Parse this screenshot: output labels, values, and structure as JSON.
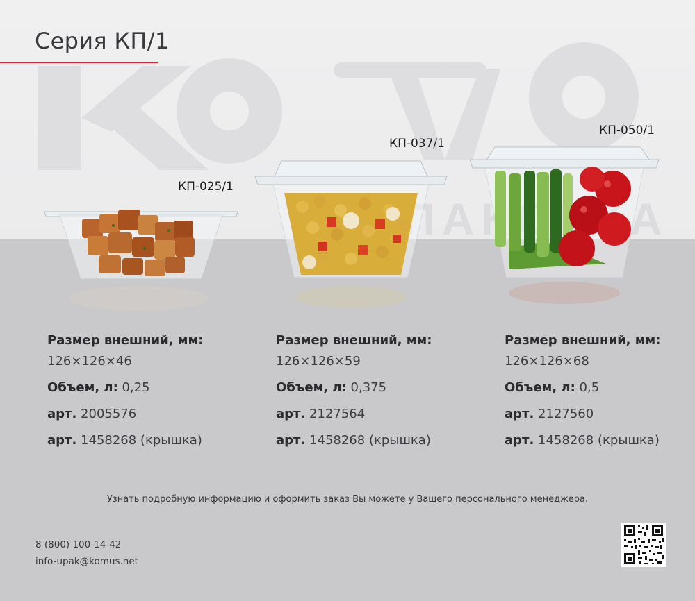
{
  "header": {
    "title": "Серия КП/1"
  },
  "watermark": {
    "brand": "komus",
    "sub": "УПАКОВКА"
  },
  "products": [
    {
      "model": "КП-025/1",
      "size_label": "Размер внешний, мм:",
      "size_value": "126×126×46",
      "volume_label": "Объем, л:",
      "volume_value": "0,25",
      "art_label": "арт.",
      "art_value": "2005576",
      "lid_art_label": "арт.",
      "lid_art_value": "1458268 (крышка)",
      "contents": "tofu"
    },
    {
      "model": "КП-037/1",
      "size_label": "Размер внешний, мм:",
      "size_value": "126×126×59",
      "volume_label": "Объем, л:",
      "volume_value": "0,375",
      "art_label": "арт.",
      "art_value": "2127564",
      "lid_art_label": "арт.",
      "lid_art_value": "1458268 (крышка)",
      "contents": "chickpea salad"
    },
    {
      "model": "КП-050/1",
      "size_label": "Размер внешний, мм:",
      "size_value": "126×126×68",
      "volume_label": "Объем, л:",
      "volume_value": "0,5",
      "art_label": "арт.",
      "art_value": "2127560",
      "lid_art_label": "арт.",
      "lid_art_value": "1458268 (крышка)",
      "contents": "vegetables"
    }
  ],
  "footer": {
    "info": "Узнать подробную информацию и оформить заказ Вы можете у Вашего персонального менеджера.",
    "phone": "8 (800) 100-14-42",
    "email": "info-upak@komus.net"
  },
  "colors": {
    "accent": "#d4252b",
    "background": "#c9c9cb",
    "top_band": "#ececed",
    "text": "#2e2e33"
  },
  "icons": [
    "qr-code-icon"
  ]
}
